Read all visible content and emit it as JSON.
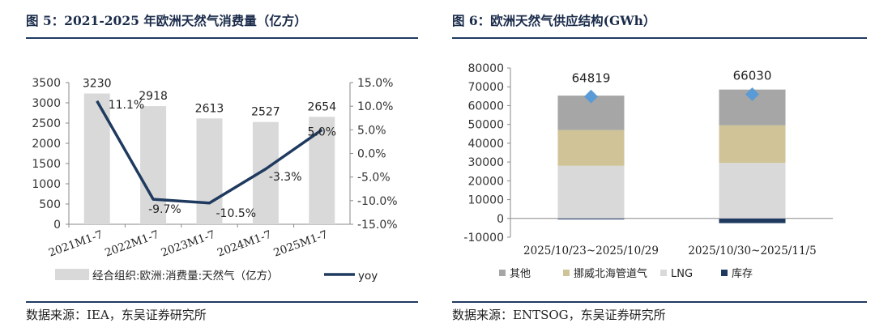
{
  "left": {
    "title": "图 5：2021-2025 年欧洲天然气消费量（亿方）",
    "source": "数据来源：IEA，东吴证券研究所",
    "chart_data": {
      "type": "bar",
      "categories": [
        "2021M1-7",
        "2022M1-7",
        "2023M1-7",
        "2024M1-7",
        "2025M1-7"
      ],
      "series": [
        {
          "name": "经合组织:欧洲:消费量:天然气（亿方）",
          "kind": "bar",
          "axis": "left",
          "values": [
            3230,
            2918,
            2613,
            2527,
            2654
          ],
          "labels": [
            "3230",
            "2918",
            "2613",
            "2527",
            "2654"
          ],
          "color": "#d9d9d9"
        },
        {
          "name": "yoy",
          "kind": "line",
          "axis": "right",
          "values": [
            11.1,
            -9.7,
            -10.5,
            -3.3,
            5.0
          ],
          "labels": [
            "11.1%",
            "-9.7%",
            "-10.5%",
            "-3.3%",
            "5.0%"
          ],
          "color": "#1f3a5f"
        }
      ],
      "y_left": {
        "min": 0,
        "max": 3500,
        "ticks": [
          0,
          500,
          1000,
          1500,
          2000,
          2500,
          3000,
          3500
        ]
      },
      "y_right": {
        "min": -15,
        "max": 15,
        "ticks": [
          -15,
          -10,
          -5,
          0,
          5,
          10,
          15
        ],
        "tick_labels": [
          "-15.0%",
          "-10.0%",
          "-5.0%",
          "0.0%",
          "5.0%",
          "10.0%",
          "15.0%"
        ]
      },
      "legend": [
        "经合组织:欧洲:消费量:天然气（亿方）",
        "yoy"
      ],
      "legend_position": "bottom"
    }
  },
  "right": {
    "title": "图 6：欧洲天然气供应结构(GWh）",
    "source": "数据来源：ENTSOG，东吴证券研究所",
    "chart_data": {
      "type": "bar",
      "stacked": true,
      "categories": [
        "2025/10/23~2025/10/29",
        "2025/10/30~2025/11/5"
      ],
      "series": [
        {
          "name": "库存",
          "values": [
            -500,
            -2500
          ],
          "color": "#1f3a5f"
        },
        {
          "name": "LNG",
          "values": [
            28000,
            29500
          ],
          "color": "#d9d9d9"
        },
        {
          "name": "挪威北海管道气",
          "values": [
            19000,
            20000
          ],
          "color": "#cfc397"
        },
        {
          "name": "其他",
          "values": [
            18319,
            19030
          ],
          "color": "#a6a6a6"
        }
      ],
      "totals": [
        64819,
        66030
      ],
      "total_labels": [
        "64819",
        "66030"
      ],
      "total_marker_color": "#5b9bd5",
      "y": {
        "min": -10000,
        "max": 80000,
        "ticks": [
          -10000,
          0,
          10000,
          20000,
          30000,
          40000,
          50000,
          60000,
          70000,
          80000
        ]
      },
      "legend": [
        "其他",
        "挪威北海管道气",
        "LNG",
        "库存"
      ],
      "legend_position": "bottom"
    }
  }
}
